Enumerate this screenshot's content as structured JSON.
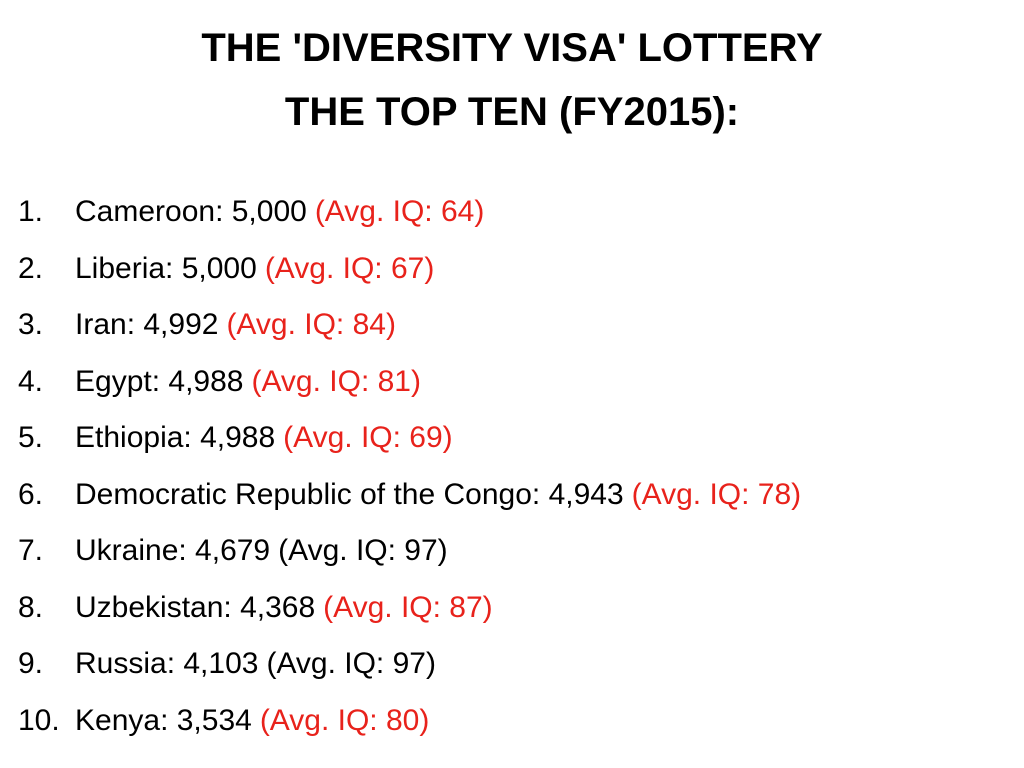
{
  "header": {
    "title_lines": [
      "THE 'DIVERSITY VISA' LOTTERY",
      "THE TOP TEN (FY2015):"
    ]
  },
  "list": {
    "items": [
      {
        "number": "1.",
        "text": "Cameroon: 5,000",
        "note": "(Avg. IQ: 64)",
        "note_color": "#e8221b"
      },
      {
        "number": "2.",
        "text": "Liberia: 5,000",
        "note": "(Avg. IQ: 67)",
        "note_color": "#e8221b"
      },
      {
        "number": "3.",
        "text": "Iran: 4,992",
        "note": "(Avg. IQ: 84)",
        "note_color": "#e8221b"
      },
      {
        "number": "4.",
        "text": "Egypt: 4,988",
        "note": "(Avg. IQ: 81)",
        "note_color": "#e8221b"
      },
      {
        "number": "5.",
        "text": "Ethiopia: 4,988",
        "note": "(Avg. IQ: 69)",
        "note_color": "#e8221b"
      },
      {
        "number": "6.",
        "text": "Democratic Republic of the Congo: 4,943",
        "note": "(Avg. IQ: 78)",
        "note_color": "#e8221b"
      },
      {
        "number": "7.",
        "text": "Ukraine: 4,679",
        "note": "(Avg. IQ: 97)",
        "note_color": "#000000"
      },
      {
        "number": "8.",
        "text": "Uzbekistan: 4,368",
        "note": "(Avg. IQ: 87)",
        "note_color": "#e8221b"
      },
      {
        "number": "9.",
        "text": "Russia: 4,103",
        "note": "(Avg. IQ: 97)",
        "note_color": "#000000"
      },
      {
        "number": "10.",
        "text": "Kenya: 3,534",
        "note": "(Avg. IQ: 80)",
        "note_color": "#e8221b"
      }
    ]
  }
}
